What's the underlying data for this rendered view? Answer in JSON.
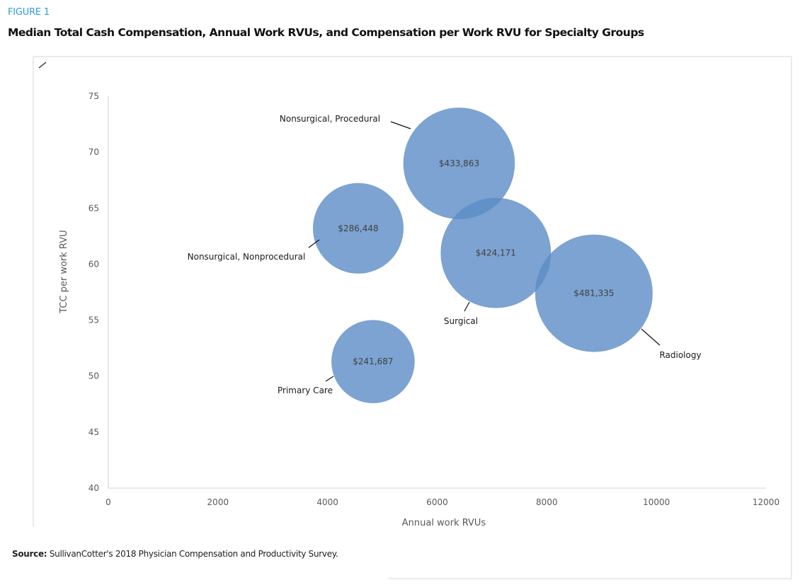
{
  "figure_label": "FIGURE 1",
  "title": "Median Total Cash Compensation, Annual Work RVUs, and Compensation per Work RVU for Specialty Groups",
  "source": {
    "prefix": "Source:",
    "text": " SullivanCotter's 2018 Physician Compensation and Productivity Survey."
  },
  "colors": {
    "bubble": "#5b8cc5",
    "figure_label": "#2e9bd6",
    "axis": "#d9d9d9",
    "frame": "#e3e3e3"
  },
  "chart_data": {
    "type": "bubble",
    "title": "Median Total Cash Compensation, Annual Work RVUs, and Compensation per Work RVU for Specialty Groups",
    "xlabel": "Annual work RVUs",
    "ylabel": "TCC per work RVU",
    "xlim": [
      0,
      12000
    ],
    "ylim": [
      40,
      75
    ],
    "x_ticks": [
      0,
      2000,
      4000,
      6000,
      8000,
      10000,
      12000
    ],
    "y_ticks": [
      40,
      45,
      50,
      55,
      60,
      65,
      70,
      75
    ],
    "grid": false,
    "legend": "none",
    "size_measure": "Median total cash compensation",
    "series": [
      {
        "name": "Nonsurgical, Procedural",
        "x": 6400,
        "y": 69.0,
        "size": 433863,
        "size_label": "$433,863"
      },
      {
        "name": "Nonsurgical, Nonprocedural",
        "x": 4560,
        "y": 63.2,
        "size": 286448,
        "size_label": "$286,448"
      },
      {
        "name": "Surgical",
        "x": 7070,
        "y": 61.0,
        "size": 424171,
        "size_label": "$424,171"
      },
      {
        "name": "Radiology",
        "x": 8860,
        "y": 57.4,
        "size": 481335,
        "size_label": "$481,335"
      },
      {
        "name": "Primary Care",
        "x": 4830,
        "y": 51.3,
        "size": 241687,
        "size_label": "$241,687"
      }
    ]
  }
}
